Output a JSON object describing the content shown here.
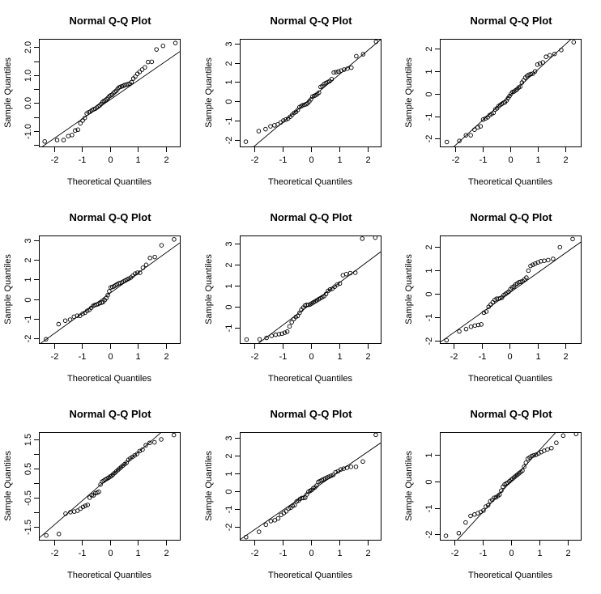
{
  "figure": {
    "layout": "3x3 grid of Normal Q-Q plots"
  },
  "chart_data": [
    {
      "type": "scatter",
      "title": "Normal Q-Q Plot",
      "xlabel": "Theoretical Quantiles",
      "ylabel": "Sample Quantiles",
      "xlim": [
        -2.55,
        2.5
      ],
      "ylim": [
        -1.55,
        2.3
      ],
      "xticks": [
        -2,
        -1,
        0,
        1,
        2
      ],
      "xtick_labels": [
        "-2",
        "-1",
        "0",
        "1",
        "2"
      ],
      "yticks": [
        -1.5,
        -1.0,
        -0.5,
        0.0,
        0.5,
        1.0,
        1.5,
        2.0
      ],
      "ytick_labels": [
        "",
        "-1.0",
        "",
        "0.0",
        "",
        "1.0",
        "",
        "2.0"
      ],
      "reference_line": {
        "slope": 0.69,
        "intercept": 0.12
      },
      "sample": [
        -1.37,
        -1.32,
        -1.32,
        -1.18,
        -1.14,
        -0.98,
        -0.95,
        -0.72,
        -0.62,
        -0.53,
        -0.37,
        -0.33,
        -0.3,
        -0.25,
        -0.22,
        -0.2,
        -0.16,
        -0.12,
        -0.08,
        -0.03,
        0.04,
        0.08,
        0.1,
        0.14,
        0.19,
        0.25,
        0.28,
        0.3,
        0.36,
        0.4,
        0.44,
        0.5,
        0.56,
        0.58,
        0.6,
        0.62,
        0.65,
        0.66,
        0.68,
        0.7,
        0.75,
        0.88,
        0.95,
        1.05,
        1.12,
        1.2,
        1.28,
        1.47,
        1.48,
        1.92,
        2.05,
        2.15
      ]
    },
    {
      "type": "scatter",
      "title": "Normal Q-Q Plot",
      "xlabel": "Theoretical Quantiles",
      "ylabel": "Sample Quantiles",
      "xlim": [
        -2.5,
        2.45
      ],
      "ylim": [
        -2.35,
        3.25
      ],
      "xticks": [
        -2,
        -1,
        0,
        1,
        2
      ],
      "xtick_labels": [
        "-2",
        "-1",
        "0",
        "1",
        "2"
      ],
      "yticks": [
        -2,
        -1,
        0,
        1,
        2,
        3
      ],
      "ytick_labels": [
        "-2",
        "-1",
        "0",
        "1",
        "2",
        "3"
      ],
      "reference_line": {
        "slope": 1.25,
        "intercept": 0.15
      },
      "sample": [
        -2.1,
        -1.55,
        -1.45,
        -1.3,
        -1.25,
        -1.2,
        -1.1,
        -1.0,
        -0.95,
        -0.9,
        -0.8,
        -0.7,
        -0.6,
        -0.55,
        -0.45,
        -0.3,
        -0.25,
        -0.2,
        -0.18,
        -0.15,
        -0.1,
        0.0,
        0.1,
        0.25,
        0.28,
        0.32,
        0.38,
        0.45,
        0.75,
        0.8,
        0.9,
        0.95,
        1.0,
        1.05,
        1.15,
        1.5,
        1.52,
        1.55,
        1.6,
        1.65,
        1.7,
        1.75,
        2.35,
        2.45,
        3.1
      ]
    },
    {
      "type": "scatter",
      "title": "Normal Q-Q Plot",
      "xlabel": "Theoretical Quantiles",
      "ylabel": "Sample Quantiles",
      "xlim": [
        -2.55,
        2.55
      ],
      "ylim": [
        -2.35,
        2.45
      ],
      "xticks": [
        -2,
        -1,
        0,
        1,
        2
      ],
      "xtick_labels": [
        "-2",
        "-1",
        "0",
        "1",
        "2"
      ],
      "yticks": [
        -2,
        -1,
        0,
        1,
        2
      ],
      "ytick_labels": [
        "-2",
        "-1",
        "0",
        "1",
        "2"
      ],
      "reference_line": {
        "slope": 1.13,
        "intercept": -0.05
      },
      "sample": [
        -2.15,
        -2.1,
        -1.85,
        -1.85,
        -1.6,
        -1.5,
        -1.45,
        -1.15,
        -1.1,
        -1.05,
        -0.95,
        -0.9,
        -0.85,
        -0.7,
        -0.65,
        -0.55,
        -0.5,
        -0.45,
        -0.4,
        -0.38,
        -0.3,
        -0.2,
        -0.1,
        0.0,
        0.08,
        0.1,
        0.15,
        0.2,
        0.28,
        0.32,
        0.5,
        0.6,
        0.72,
        0.8,
        0.85,
        0.88,
        0.9,
        1.0,
        1.3,
        1.35,
        1.4,
        1.65,
        1.72,
        1.78,
        1.95,
        2.3
      ]
    },
    {
      "type": "scatter",
      "title": "Normal Q-Q Plot",
      "xlabel": "Theoretical Quantiles",
      "ylabel": "Sample Quantiles",
      "xlim": [
        -2.55,
        2.5
      ],
      "ylim": [
        -2.25,
        3.25
      ],
      "xticks": [
        -2,
        -1,
        0,
        1,
        2
      ],
      "xtick_labels": [
        "-2",
        "-1",
        "0",
        "1",
        "2"
      ],
      "yticks": [
        -2,
        -1,
        0,
        1,
        2,
        3
      ],
      "ytick_labels": [
        "-2",
        "-1",
        "0",
        "1",
        "2",
        "3"
      ],
      "reference_line": {
        "slope": 1.03,
        "intercept": 0.3
      },
      "sample": [
        -2.05,
        -1.28,
        -1.1,
        -1.05,
        -0.9,
        -0.85,
        -0.85,
        -0.75,
        -0.7,
        -0.6,
        -0.55,
        -0.45,
        -0.35,
        -0.3,
        -0.28,
        -0.25,
        -0.2,
        -0.18,
        -0.15,
        -0.05,
        0.05,
        0.2,
        0.4,
        0.6,
        0.62,
        0.65,
        0.7,
        0.75,
        0.8,
        0.82,
        0.85,
        0.9,
        0.95,
        1.0,
        1.05,
        1.1,
        1.2,
        1.3,
        1.35,
        1.35,
        1.6,
        1.75,
        2.1,
        2.15,
        2.75,
        3.05
      ]
    },
    {
      "type": "scatter",
      "title": "Normal Q-Q Plot",
      "xlabel": "Theoretical Quantiles",
      "ylabel": "Sample Quantiles",
      "xlim": [
        -2.5,
        2.45
      ],
      "ylim": [
        -1.75,
        3.4
      ],
      "xticks": [
        -2,
        -1,
        0,
        1,
        2
      ],
      "xtick_labels": [
        "-2",
        "-1",
        "0",
        "1",
        "2"
      ],
      "yticks": [
        -1,
        0,
        1,
        2,
        3
      ],
      "ytick_labels": [
        "-1",
        "0",
        "1",
        "2",
        "3"
      ],
      "reference_line": {
        "slope": 1.02,
        "intercept": 0.12
      },
      "sample": [
        -1.58,
        -1.57,
        -1.5,
        -1.4,
        -1.35,
        -1.32,
        -1.3,
        -1.25,
        -1.2,
        -0.95,
        -0.75,
        -0.6,
        -0.5,
        -0.45,
        -0.3,
        -0.15,
        -0.05,
        0.05,
        0.08,
        0.08,
        0.1,
        0.15,
        0.2,
        0.25,
        0.3,
        0.35,
        0.4,
        0.45,
        0.5,
        0.6,
        0.75,
        0.82,
        0.85,
        0.95,
        1.05,
        1.1,
        1.5,
        1.55,
        1.6,
        1.62,
        3.25,
        3.3
      ]
    },
    {
      "type": "scatter",
      "title": "Normal Q-Q Plot",
      "xlabel": "Theoretical Quantiles",
      "ylabel": "Sample Quantiles",
      "xlim": [
        -2.5,
        2.55
      ],
      "ylim": [
        -2.1,
        2.5
      ],
      "xticks": [
        -2,
        -1,
        0,
        1,
        2
      ],
      "xtick_labels": [
        "-2",
        "-1",
        "0",
        "1",
        "2"
      ],
      "yticks": [
        -2,
        -1,
        0,
        1,
        2
      ],
      "ytick_labels": [
        "-2",
        "-1",
        "0",
        "1",
        "2"
      ],
      "reference_line": {
        "slope": 0.85,
        "intercept": 0.05
      },
      "sample": [
        -1.98,
        -1.6,
        -1.5,
        -1.4,
        -1.35,
        -1.32,
        -1.3,
        -0.8,
        -0.75,
        -0.55,
        -0.45,
        -0.35,
        -0.25,
        -0.2,
        -0.2,
        -0.18,
        -0.15,
        -0.05,
        0.0,
        0.05,
        0.1,
        0.2,
        0.28,
        0.32,
        0.4,
        0.45,
        0.5,
        0.52,
        0.55,
        0.62,
        0.7,
        1.0,
        1.2,
        1.25,
        1.3,
        1.35,
        1.4,
        1.42,
        1.45,
        1.5,
        2.0,
        2.35
      ]
    },
    {
      "type": "scatter",
      "title": "Normal Q-Q Plot",
      "xlabel": "Theoretical Quantiles",
      "ylabel": "Sample Quantiles",
      "xlim": [
        -2.55,
        2.5
      ],
      "ylim": [
        -1.95,
        1.75
      ],
      "xticks": [
        -2,
        -1,
        0,
        1,
        2
      ],
      "xtick_labels": [
        "-2",
        "-1",
        "0",
        "1",
        "2"
      ],
      "yticks": [
        -1.5,
        -1.0,
        -0.5,
        0.0,
        0.5,
        1.0,
        1.5
      ],
      "ytick_labels": [
        "-1.5",
        "",
        "-0.5",
        "",
        "0.5",
        "",
        "1.5"
      ],
      "reference_line": {
        "slope": 0.83,
        "intercept": 0.22
      },
      "sample": [
        -1.8,
        -1.75,
        -1.05,
        -1.0,
        -0.98,
        -0.95,
        -0.88,
        -0.82,
        -0.78,
        -0.75,
        -0.5,
        -0.42,
        -0.42,
        -0.35,
        -0.33,
        -0.3,
        -0.05,
        0.05,
        0.08,
        0.12,
        0.15,
        0.18,
        0.22,
        0.25,
        0.3,
        0.35,
        0.4,
        0.45,
        0.5,
        0.55,
        0.6,
        0.65,
        0.7,
        0.8,
        0.85,
        0.9,
        0.95,
        1.0,
        1.1,
        1.15,
        1.3,
        1.38,
        1.4,
        1.5,
        1.65
      ]
    },
    {
      "type": "scatter",
      "title": "Normal Q-Q Plot",
      "xlabel": "Theoretical Quantiles",
      "ylabel": "Sample Quantiles",
      "xlim": [
        -2.5,
        2.45
      ],
      "ylim": [
        -2.75,
        3.3
      ],
      "xticks": [
        -2,
        -1,
        0,
        1,
        2
      ],
      "xtick_labels": [
        "-2",
        "-1",
        "0",
        "1",
        "2"
      ],
      "yticks": [
        -2,
        -1,
        0,
        1,
        2,
        3
      ],
      "ytick_labels": [
        "-2",
        "-1",
        "0",
        "1",
        "2",
        "3"
      ],
      "reference_line": {
        "slope": 1.1,
        "intercept": 0.0
      },
      "sample": [
        -2.6,
        -2.3,
        -1.9,
        -1.7,
        -1.65,
        -1.55,
        -1.35,
        -1.25,
        -1.15,
        -1.0,
        -0.95,
        -0.85,
        -0.8,
        -0.6,
        -0.55,
        -0.45,
        -0.4,
        -0.4,
        -0.38,
        -0.2,
        -0.05,
        0.0,
        0.05,
        0.15,
        0.2,
        0.3,
        0.5,
        0.55,
        0.6,
        0.65,
        0.7,
        0.75,
        0.8,
        0.85,
        0.9,
        1.05,
        1.1,
        1.2,
        1.25,
        1.3,
        1.35,
        1.35,
        1.65,
        3.15
      ]
    },
    {
      "type": "scatter",
      "title": "Normal Q-Q Plot",
      "xlabel": "Theoretical Quantiles",
      "ylabel": "Sample Quantiles",
      "xlim": [
        -2.5,
        2.45
      ],
      "ylim": [
        -2.2,
        1.85
      ],
      "xticks": [
        -2,
        -1,
        0,
        1,
        2
      ],
      "xtick_labels": [
        "-2",
        "-1",
        "0",
        "1",
        "2"
      ],
      "yticks": [
        -2,
        -1,
        0,
        1
      ],
      "ytick_labels": [
        "-2",
        "-1",
        "0",
        "1"
      ],
      "reference_line": {
        "slope": 1.17,
        "intercept": 0.0
      },
      "sample": [
        -2.05,
        -1.95,
        -1.55,
        -1.3,
        -1.25,
        -1.2,
        -1.15,
        -1.1,
        -0.95,
        -0.9,
        -0.75,
        -0.7,
        -0.62,
        -0.6,
        -0.55,
        -0.5,
        -0.35,
        -0.2,
        -0.12,
        -0.08,
        -0.05,
        0.0,
        0.05,
        0.1,
        0.15,
        0.2,
        0.25,
        0.3,
        0.35,
        0.4,
        0.55,
        0.7,
        0.85,
        0.9,
        0.95,
        0.98,
        1.0,
        1.05,
        1.1,
        1.15,
        1.2,
        1.25,
        1.45,
        1.72,
        1.78
      ]
    }
  ]
}
